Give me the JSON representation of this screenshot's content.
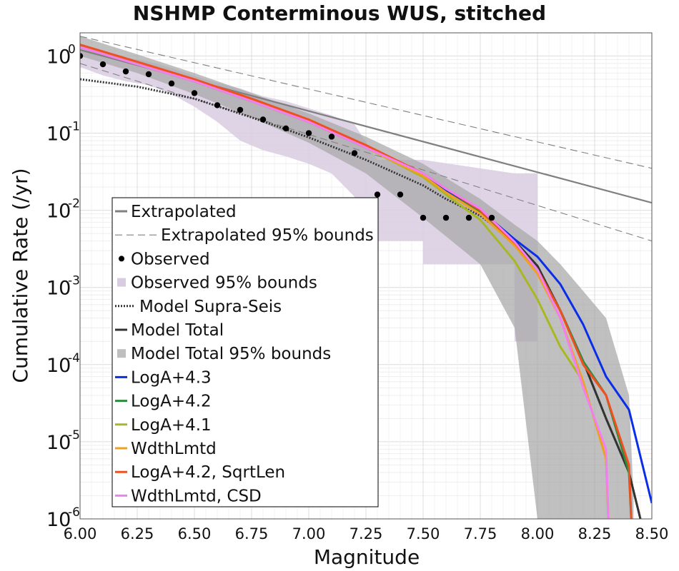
{
  "chart_data": {
    "type": "line",
    "title": "NSHMP Conterminous WUS, stitched",
    "xlabel": "Magnitude",
    "ylabel": "Cumulative Rate (/yr)",
    "xlim": [
      6.0,
      8.5
    ],
    "ylim_log10": [
      -6,
      0.3
    ],
    "yscale": "log",
    "grid": true,
    "legend_position": "lower-left",
    "x_ticks": [
      "6.00",
      "6.25",
      "6.50",
      "6.75",
      "7.00",
      "7.25",
      "7.50",
      "7.75",
      "8.00",
      "8.25",
      "8.50"
    ],
    "x_tick_values": [
      6.0,
      6.25,
      6.5,
      6.75,
      7.0,
      7.25,
      7.5,
      7.75,
      8.0,
      8.25,
      8.5
    ],
    "y_ticks": [
      {
        "base": "10",
        "exp": "0",
        "value": 1
      },
      {
        "base": "10",
        "exp": "-1",
        "value": 0.1
      },
      {
        "base": "10",
        "exp": "-2",
        "value": 0.01
      },
      {
        "base": "10",
        "exp": "-3",
        "value": 0.001
      },
      {
        "base": "10",
        "exp": "-4",
        "value": 0.0001
      },
      {
        "base": "10",
        "exp": "-5",
        "value": 1e-05
      },
      {
        "base": "10",
        "exp": "-6",
        "value": 1e-06
      }
    ],
    "legend": [
      {
        "label": "Extrapolated",
        "kind": "line",
        "color": "#808080",
        "dash": ""
      },
      {
        "label": "Extrapolated 95% bounds",
        "kind": "line",
        "color": "#808080",
        "dash": "10,6"
      },
      {
        "label": "Observed",
        "kind": "dot",
        "color": "#000000"
      },
      {
        "label": "Observed 95% bounds",
        "kind": "patch",
        "color": "#d8cce0"
      },
      {
        "label": "Model Supra-Seis",
        "kind": "line",
        "color": "#333333",
        "dash": "2,2"
      },
      {
        "label": "Model Total",
        "kind": "line",
        "color": "#333333",
        "dash": ""
      },
      {
        "label": "Model Total 95% bounds",
        "kind": "patch",
        "color": "#bfbfbf"
      },
      {
        "label": "LogA+4.3",
        "kind": "line",
        "color": "#0a2ee8",
        "dash": ""
      },
      {
        "label": "LogA+4.2",
        "kind": "line",
        "color": "#2e8b3e",
        "dash": ""
      },
      {
        "label": "LogA+4.1",
        "kind": "line",
        "color": "#a9b820",
        "dash": ""
      },
      {
        "label": "WdthLmtd",
        "kind": "line",
        "color": "#f0a020",
        "dash": ""
      },
      {
        "label": "LogA+4.2, SqrtLen",
        "kind": "line",
        "color": "#f05020",
        "dash": ""
      },
      {
        "label": "WdthLmtd, CSD",
        "kind": "line",
        "color": "#f27ff2",
        "dash": ""
      }
    ],
    "observed": {
      "x": [
        6.0,
        6.1,
        6.2,
        6.3,
        6.4,
        6.5,
        6.6,
        6.7,
        6.8,
        6.9,
        7.0,
        7.1,
        7.2,
        7.3,
        7.4,
        7.5,
        7.6,
        7.7,
        7.8
      ],
      "y": [
        1.0,
        0.78,
        0.63,
        0.58,
        0.44,
        0.33,
        0.23,
        0.2,
        0.15,
        0.115,
        0.1,
        0.09,
        0.055,
        0.016,
        0.016,
        0.008,
        0.008,
        0.008,
        0.008
      ]
    },
    "observed_bounds": {
      "x": [
        6.0,
        6.1,
        6.2,
        6.3,
        6.4,
        6.5,
        6.6,
        6.7,
        6.8,
        6.9,
        7.0,
        7.1,
        7.2,
        7.3,
        7.3,
        7.5,
        7.5,
        7.9,
        7.9,
        8.0
      ],
      "lower": [
        0.72,
        0.56,
        0.47,
        0.42,
        0.32,
        0.22,
        0.14,
        0.08,
        0.06,
        0.05,
        0.04,
        0.03,
        0.015,
        0.004,
        0.004,
        0.004,
        0.002,
        0.002,
        0.0002,
        0.0002
      ],
      "upper": [
        1.4,
        1.1,
        0.95,
        0.85,
        0.7,
        0.55,
        0.45,
        0.38,
        0.3,
        0.26,
        0.21,
        0.17,
        0.13,
        0.045,
        0.045,
        0.045,
        0.045,
        0.03,
        0.03,
        0.03
      ]
    },
    "model_total_bounds": {
      "x": [
        6.0,
        6.25,
        6.5,
        6.75,
        7.0,
        7.25,
        7.5,
        7.75,
        7.9,
        8.0,
        8.1,
        8.2,
        8.3,
        8.4,
        8.42
      ],
      "lower": [
        1.0,
        0.6,
        0.32,
        0.16,
        0.075,
        0.03,
        0.008,
        0.002,
        0.0003,
        1e-06,
        1e-06,
        1e-06,
        1e-06,
        1e-06,
        1e-06
      ],
      "upper": [
        1.8,
        1.05,
        0.6,
        0.33,
        0.18,
        0.09,
        0.04,
        0.014,
        0.0065,
        0.004,
        0.002,
        0.0009,
        0.0004,
        4e-05,
        2e-06
      ]
    },
    "series": [
      {
        "name": "Extrapolated",
        "color": "#808080",
        "width": 2.2,
        "dash": "",
        "x": [
          6.0,
          8.5
        ],
        "y": [
          1.2,
          0.0125
        ]
      },
      {
        "name": "Extrapolated 95% bounds",
        "color": "#808080",
        "width": 1.1,
        "dash": "10,6",
        "x": [
          6.0,
          8.5
        ],
        "y": [
          1.8,
          0.035
        ]
      },
      {
        "name": "Extrapolated 95% bounds",
        "color": "#808080",
        "width": 1.1,
        "dash": "10,6",
        "x": [
          6.0,
          8.5
        ],
        "y": [
          0.8,
          0.004
        ]
      },
      {
        "name": "Model Supra-Seis",
        "color": "#333333",
        "width": 3,
        "dash": "2,2",
        "x": [
          6.0,
          6.25,
          6.5,
          6.75,
          7.0,
          7.25,
          7.5,
          7.6,
          7.75,
          7.9,
          8.0,
          8.1,
          8.2,
          8.3,
          8.4,
          8.45
        ],
        "y": [
          0.5,
          0.4,
          0.28,
          0.16,
          0.088,
          0.045,
          0.021,
          0.014,
          0.0085,
          0.004,
          0.0019,
          0.0005,
          0.00011,
          2e-05,
          4e-06,
          1e-06
        ]
      },
      {
        "name": "Model Total",
        "color": "#333333",
        "width": 3,
        "dash": "",
        "x": [
          6.0,
          6.25,
          6.5,
          6.75,
          7.0,
          7.25,
          7.5,
          7.6,
          7.75,
          7.9,
          8.0,
          8.1,
          8.2,
          8.3,
          8.4,
          8.45
        ],
        "y": [
          1.3,
          0.78,
          0.47,
          0.26,
          0.14,
          0.065,
          0.028,
          0.018,
          0.01,
          0.004,
          0.0019,
          0.0005,
          0.00011,
          2e-05,
          4e-06,
          1e-06
        ]
      },
      {
        "name": "LogA+4.3",
        "color": "#0a2ee8",
        "width": 3,
        "dash": "",
        "x": [
          6.0,
          6.25,
          6.5,
          6.75,
          7.0,
          7.25,
          7.5,
          7.6,
          7.75,
          7.9,
          8.0,
          8.1,
          8.2,
          8.3,
          8.4,
          8.5
        ],
        "y": [
          1.3,
          0.78,
          0.47,
          0.26,
          0.14,
          0.065,
          0.028,
          0.018,
          0.01,
          0.0042,
          0.0025,
          0.0011,
          0.00033,
          7e-05,
          2.6e-05,
          1.6e-06
        ]
      },
      {
        "name": "LogA+4.2",
        "color": "#2e8b3e",
        "width": 3,
        "dash": "",
        "x": [
          6.0,
          6.25,
          6.5,
          6.75,
          7.0,
          7.25,
          7.5,
          7.6,
          7.75,
          7.9,
          8.0,
          8.1,
          8.2,
          8.3,
          8.4,
          8.41
        ],
        "y": [
          1.3,
          0.78,
          0.47,
          0.26,
          0.14,
          0.065,
          0.028,
          0.017,
          0.0095,
          0.0038,
          0.0017,
          0.0005,
          0.00011,
          4e-05,
          4e-06,
          1e-06
        ]
      },
      {
        "name": "LogA+4.1",
        "color": "#a9b820",
        "width": 3,
        "dash": "",
        "x": [
          6.0,
          6.25,
          6.5,
          6.75,
          7.0,
          7.25,
          7.5,
          7.6,
          7.75,
          7.9,
          8.0,
          8.1,
          8.2,
          8.3,
          8.31
        ],
        "y": [
          1.3,
          0.78,
          0.47,
          0.26,
          0.14,
          0.065,
          0.027,
          0.016,
          0.0075,
          0.0022,
          0.0007,
          0.00017,
          6e-05,
          6e-06,
          1e-06
        ]
      },
      {
        "name": "WdthLmtd",
        "color": "#f0a020",
        "width": 3,
        "dash": "",
        "x": [
          6.0,
          6.25,
          6.5,
          6.75,
          7.0,
          7.25,
          7.5,
          7.6,
          7.75,
          7.9,
          8.0,
          8.1,
          8.2,
          8.3,
          8.31
        ],
        "y": [
          1.3,
          0.78,
          0.47,
          0.26,
          0.14,
          0.065,
          0.028,
          0.017,
          0.009,
          0.0035,
          0.0015,
          0.0004,
          6e-05,
          6e-06,
          1e-06
        ]
      },
      {
        "name": "LogA+4.2, SqrtLen",
        "color": "#f05020",
        "width": 3,
        "dash": "",
        "x": [
          6.0,
          6.25,
          6.5,
          6.75,
          7.0,
          7.25,
          7.5,
          7.6,
          7.75,
          7.9,
          8.0,
          8.1,
          8.2,
          8.3,
          8.4,
          8.41
        ],
        "y": [
          1.4,
          0.84,
          0.5,
          0.28,
          0.15,
          0.07,
          0.03,
          0.019,
          0.01,
          0.0038,
          0.0017,
          0.0005,
          0.0001,
          4e-05,
          5e-06,
          1e-06
        ]
      },
      {
        "name": "WdthLmtd, CSD",
        "color": "#f27ff2",
        "width": 3,
        "dash": "",
        "x": [
          6.0,
          6.25,
          6.5,
          6.75,
          7.0,
          7.25,
          7.5,
          7.6,
          7.75,
          7.9,
          8.0,
          8.1,
          8.2,
          8.3,
          8.31
        ],
        "y": [
          1.3,
          0.78,
          0.47,
          0.26,
          0.14,
          0.065,
          0.03,
          0.019,
          0.0105,
          0.0039,
          0.0017,
          0.0004,
          5e-05,
          8e-06,
          1e-06
        ]
      }
    ]
  }
}
